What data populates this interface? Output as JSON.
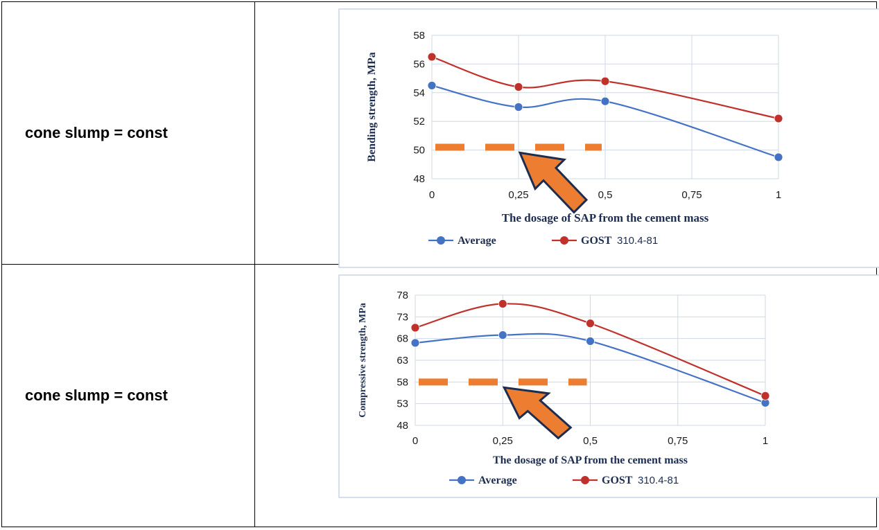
{
  "rows": [
    {
      "label": "cone slump = const"
    },
    {
      "label": "cone slump = const"
    }
  ],
  "colors": {
    "average": "#4472c4",
    "gost": "#c0312b",
    "threshold": "#ed7d31",
    "arrow_fill": "#ed7d31",
    "arrow_outline": "#1d2d50",
    "axis_title": "#1d2d50",
    "grid": "#cfd8e6",
    "chart_border": "#c8d4e6"
  },
  "chart_data": [
    {
      "type": "line",
      "title": "",
      "xlabel": "The dosage of SAP from the cement mass",
      "ylabel": "Bending strength, MPa",
      "x": [
        0,
        0.25,
        0.5,
        1
      ],
      "xticks": [
        0,
        0.25,
        0.5,
        0.75,
        1
      ],
      "xtick_labels": [
        "0",
        "0,25",
        "0,5",
        "0,75",
        "1"
      ],
      "yticks": [
        48,
        50,
        52,
        54,
        56,
        58
      ],
      "ylim": [
        48,
        58
      ],
      "grid": true,
      "legend_position": "bottom",
      "series": [
        {
          "name": "Average",
          "values": [
            54.5,
            53.0,
            53.4,
            49.5
          ]
        },
        {
          "name": "GOST",
          "values": [
            56.5,
            54.4,
            54.8,
            52.2
          ]
        }
      ],
      "legend": [
        {
          "series": "Average",
          "label": "Average",
          "suffix": ""
        },
        {
          "series": "GOST",
          "label": "GOST",
          "suffix": "310.4-81"
        }
      ],
      "reference_line": {
        "y": 50.2,
        "x_range": [
          0,
          0.5
        ],
        "style": "dashed"
      },
      "annotations": [
        {
          "type": "arrow",
          "direction": "up-left",
          "points_to": {
            "x": 0.25,
            "y": 50.2
          }
        }
      ]
    },
    {
      "type": "line",
      "title": "",
      "xlabel": "The dosage of SAP from the cement mass",
      "ylabel": "Compressive strength, MPa",
      "x": [
        0,
        0.25,
        0.5,
        1
      ],
      "xticks": [
        0,
        0.25,
        0.5,
        0.75,
        1
      ],
      "xtick_labels": [
        "0",
        "0,25",
        "0,5",
        "0,75",
        "1"
      ],
      "yticks": [
        48,
        53,
        58,
        63,
        68,
        73,
        78
      ],
      "ylim": [
        48,
        78
      ],
      "grid": true,
      "legend_position": "bottom",
      "series": [
        {
          "name": "Average",
          "values": [
            67.0,
            68.8,
            67.4,
            53.2
          ]
        },
        {
          "name": "GOST",
          "values": [
            70.5,
            76.0,
            71.5,
            54.8
          ]
        }
      ],
      "legend": [
        {
          "series": "Average",
          "label": "Average",
          "suffix": ""
        },
        {
          "series": "GOST",
          "label": "GOST",
          "suffix": "310.4-81"
        }
      ],
      "reference_line": {
        "y": 58.0,
        "x_range": [
          0,
          0.5
        ],
        "style": "dashed"
      },
      "annotations": [
        {
          "type": "arrow",
          "direction": "up-left",
          "points_to": {
            "x": 0.25,
            "y": 58.0
          }
        }
      ]
    }
  ]
}
